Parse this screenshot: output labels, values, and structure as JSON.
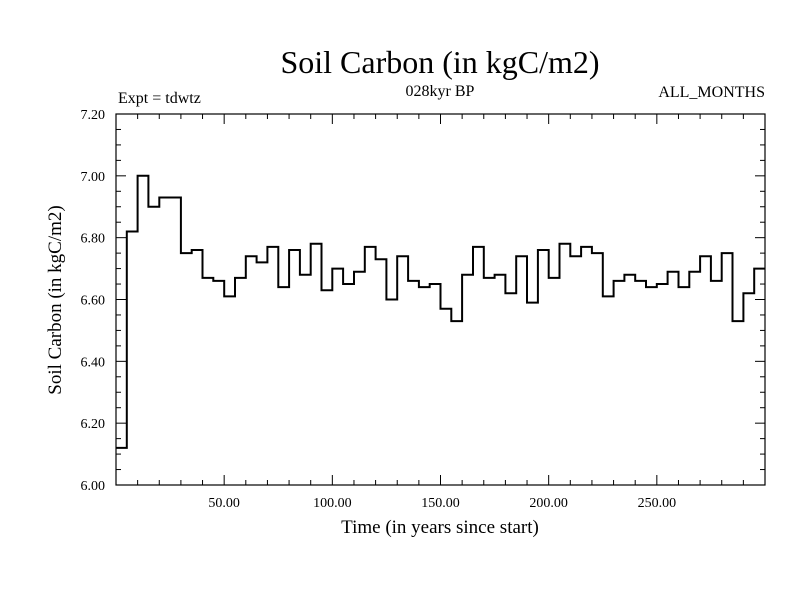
{
  "chart_data": {
    "type": "line",
    "style": "step",
    "title": "Soil Carbon (in kgC/m2)",
    "subtitle": "028kyr BP",
    "expt_label": "Expt = tdwtz",
    "months_label": "ALL_MONTHS",
    "xlabel": "Time (in years since start)",
    "ylabel": "Soil Carbon (in kgC/m2)",
    "xlim": [
      0,
      300
    ],
    "ylim": [
      6.0,
      7.2
    ],
    "x_ticks": [
      50,
      100,
      150,
      200,
      250
    ],
    "x_tick_labels": [
      "50.00",
      "100.00",
      "150.00",
      "200.00",
      "250.00"
    ],
    "y_ticks": [
      6.0,
      6.2,
      6.4,
      6.6,
      6.8,
      7.0,
      7.2
    ],
    "y_tick_labels": [
      "6.00",
      "6.20",
      "6.40",
      "6.60",
      "6.80",
      "7.00",
      "7.20"
    ],
    "step_width": 5,
    "series": [
      {
        "name": "Soil Carbon",
        "x_start": 0,
        "values": [
          6.12,
          6.82,
          7.0,
          6.9,
          6.93,
          6.93,
          6.75,
          6.76,
          6.67,
          6.66,
          6.61,
          6.67,
          6.74,
          6.72,
          6.77,
          6.64,
          6.76,
          6.68,
          6.78,
          6.63,
          6.7,
          6.65,
          6.69,
          6.77,
          6.73,
          6.6,
          6.74,
          6.66,
          6.64,
          6.65,
          6.57,
          6.53,
          6.68,
          6.77,
          6.67,
          6.68,
          6.62,
          6.74,
          6.59,
          6.76,
          6.67,
          6.78,
          6.74,
          6.77,
          6.75,
          6.61,
          6.66,
          6.68,
          6.66,
          6.64,
          6.65,
          6.69,
          6.64,
          6.69,
          6.74,
          6.66,
          6.75,
          6.53,
          6.62,
          6.7
        ]
      }
    ]
  },
  "colors": {
    "line": "#000000",
    "background": "#ffffff"
  }
}
